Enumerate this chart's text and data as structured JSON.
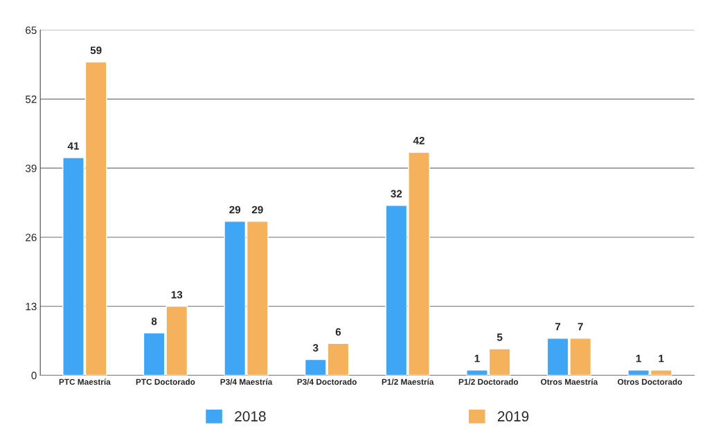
{
  "chart_data": {
    "type": "bar",
    "categories": [
      "PTC Maestría",
      "PTC Doctorado",
      "P3/4 Maestría",
      "P3/4 Doctorado",
      "P1/2 Maestría",
      "P1/2 Doctorado",
      "Otros Maestría",
      "Otros Doctorado"
    ],
    "series": [
      {
        "name": "2018",
        "color": "#3ea6f5",
        "values": [
          41,
          8,
          29,
          3,
          32,
          1,
          7,
          1
        ]
      },
      {
        "name": "2019",
        "color": "#f5b25c",
        "values": [
          59,
          13,
          29,
          6,
          42,
          5,
          7,
          1
        ]
      }
    ],
    "ylim": [
      0,
      65
    ],
    "yticks": [
      0,
      13,
      26,
      39,
      52,
      65
    ],
    "grid": "y",
    "legend": "bottom",
    "data_labels": true
  }
}
